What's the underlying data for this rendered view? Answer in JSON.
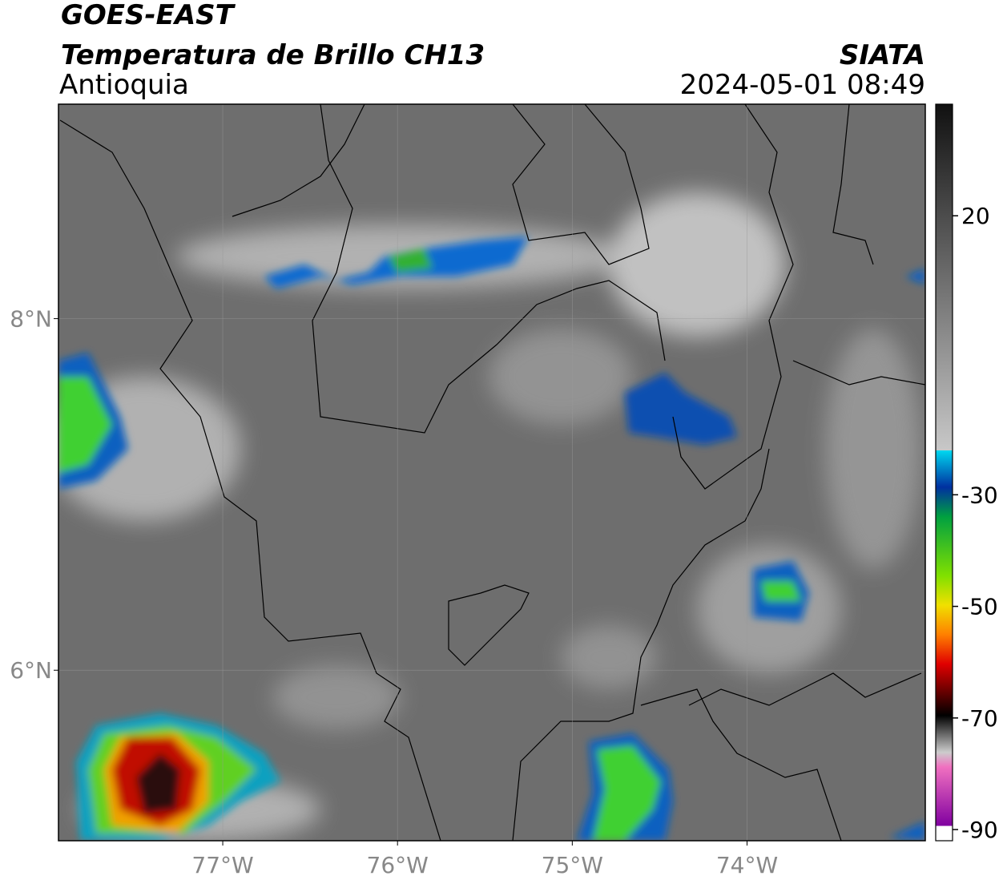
{
  "header": {
    "title": "GOES-EAST",
    "subtitle": "Temperatura de Brillo CH13",
    "region": "Antioquia",
    "source": "SIATA",
    "datetime": "2024-05-01 08:49"
  },
  "map": {
    "xlim": [
      -77.94,
      -72.98
    ],
    "ylim": [
      5.03,
      9.22
    ],
    "xticks": [
      {
        "value": -77,
        "label": "77°W"
      },
      {
        "value": -76,
        "label": "76°W"
      },
      {
        "value": -75,
        "label": "75°W"
      },
      {
        "value": -74,
        "label": "74°W"
      }
    ],
    "yticks": [
      {
        "value": 8,
        "label": "8°N"
      },
      {
        "value": 6,
        "label": "6°N"
      }
    ]
  },
  "colorbar": {
    "range": [
      -92,
      40
    ],
    "ticks": [
      20,
      -30,
      -50,
      -70,
      -90
    ]
  }
}
